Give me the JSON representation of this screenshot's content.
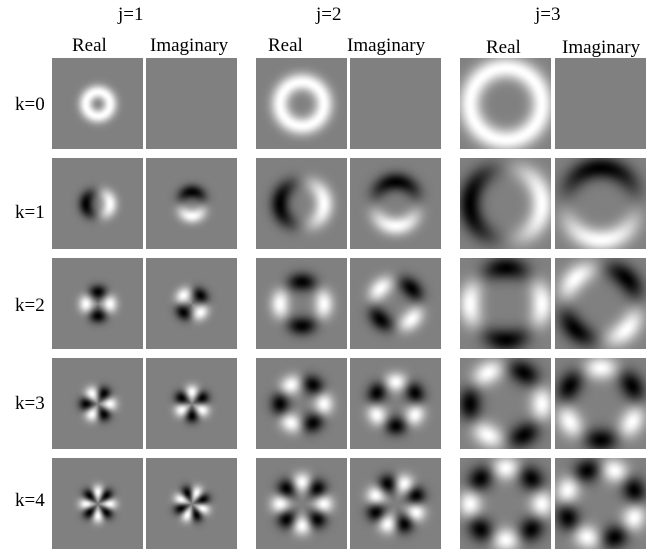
{
  "columns": [
    {
      "j_label": "j=1",
      "real_label": "Real",
      "imag_label": "Imaginary"
    },
    {
      "j_label": "j=2",
      "real_label": "Real",
      "imag_label": "Imaginary"
    },
    {
      "j_label": "j=3",
      "real_label": "Real",
      "imag_label": "Imaginary"
    }
  ],
  "rows": [
    {
      "label": "k=0"
    },
    {
      "label": "k=1"
    },
    {
      "label": "k=2"
    },
    {
      "label": "k=3"
    },
    {
      "label": "k=4"
    }
  ],
  "colors": {
    "background": "#808080",
    "white": "#ffffff",
    "black": "#000000"
  }
}
